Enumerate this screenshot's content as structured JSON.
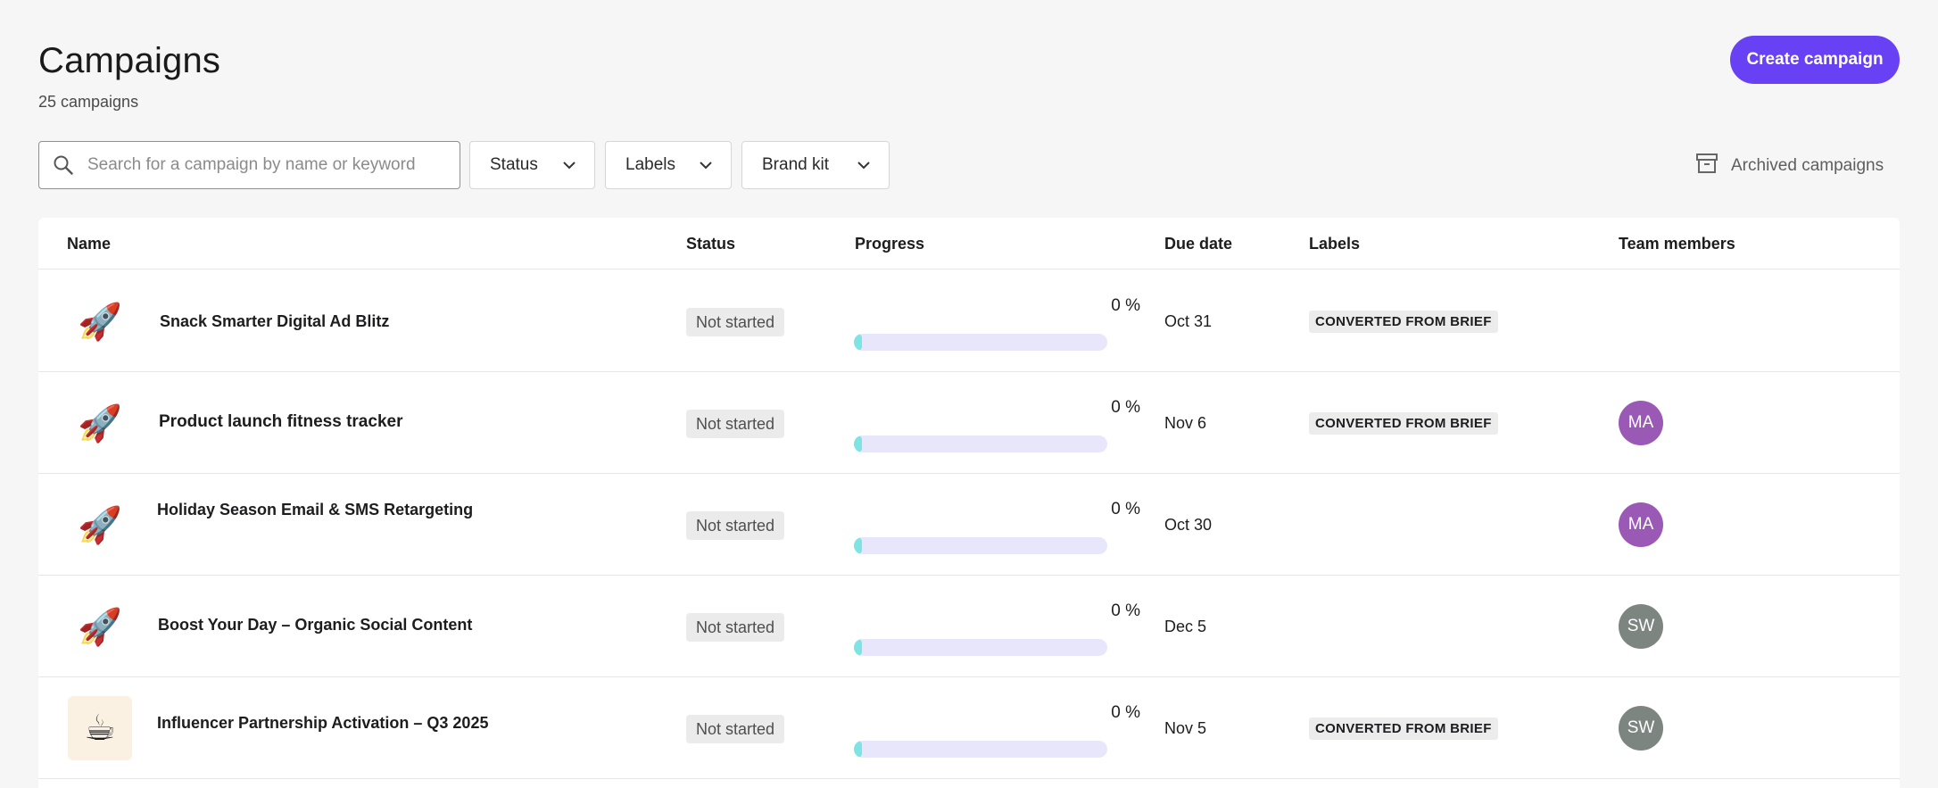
{
  "header": {
    "title": "Campaigns",
    "count_text": "25 campaigns",
    "create_label": "Create campaign",
    "accent_color": "#6941f4"
  },
  "toolbar": {
    "search_placeholder": "Search for a campaign by name or keyword",
    "search_value": "",
    "filters": [
      {
        "label": "Status",
        "icon": "chevron-down-icon"
      },
      {
        "label": "Labels",
        "icon": "chevron-down-icon"
      },
      {
        "label": "Brand kit",
        "icon": "chevron-down-icon"
      }
    ],
    "archived_label": "Archived campaigns",
    "archived_icon": "archive-box-icon"
  },
  "table": {
    "columns": [
      "Name",
      "Status",
      "Progress",
      "Due date",
      "Labels",
      "Team members"
    ],
    "rows": [
      {
        "icon": "rocket-icon",
        "name": "Snack Smarter Digital Ad Blitz",
        "status": "Not started",
        "progress_text": "0 %",
        "progress": 0,
        "due": "Oct 31",
        "label": "CONVERTED FROM BRIEF",
        "member": "",
        "member_color": ""
      },
      {
        "icon": "rocket-icon",
        "name": "Product launch fitness tracker",
        "status": "Not started",
        "progress_text": "0 %",
        "progress": 0,
        "due": "Nov 6",
        "label": "CONVERTED FROM BRIEF",
        "member": "MA",
        "member_color": "#9b59b6"
      },
      {
        "icon": "rocket-icon",
        "name": "Holiday Season Email & SMS Retargeting",
        "status": "Not started",
        "progress_text": "0 %",
        "progress": 0,
        "due": "Oct 30",
        "label": "",
        "member": "MA",
        "member_color": "#9b59b6"
      },
      {
        "icon": "rocket-icon",
        "name": "Boost Your Day – Organic Social Content",
        "status": "Not started",
        "progress_text": "0 %",
        "progress": 0,
        "due": "Dec 5",
        "label": "",
        "member": "SW",
        "member_color": "#7c8580"
      },
      {
        "icon": "coffee-cup-icon",
        "name": "Influencer Partnership Activation – Q3 2025",
        "status": "Not started",
        "progress_text": "0 %",
        "progress": 0,
        "due": "Nov 5",
        "label": "CONVERTED FROM BRIEF",
        "member": "SW",
        "member_color": "#7c8580"
      }
    ]
  },
  "colors": {
    "progress_track": "#e8e6fb",
    "progress_fill": "#7ee3e3"
  }
}
